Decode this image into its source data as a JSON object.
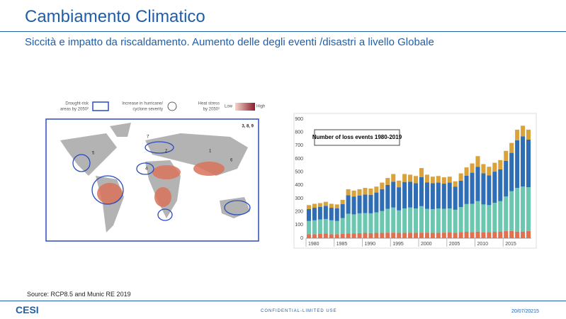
{
  "header": {
    "title": "Cambiamento Climatico",
    "subtitle": "Siccità e impatto da riscaldamento. Aumento delle degli eventi /disastri a livello Globale"
  },
  "map": {
    "legend": {
      "drought": [
        "Drought-risk",
        "areas by 2050²"
      ],
      "cyclone": [
        "Increase in hurricane/",
        "cyclone severity"
      ],
      "heat": [
        "Heat stress",
        "by 2050¹"
      ],
      "low": "Low",
      "high": "High"
    },
    "corner_label": "3, 8, 9",
    "labels": [
      "1",
      "2",
      "4",
      "5",
      "6",
      "7"
    ]
  },
  "chart_data": {
    "type": "bar",
    "stacked": true,
    "title": "Number of loss events 1980-2019",
    "categories": [
      "1980",
      null,
      null,
      null,
      null,
      "1985",
      null,
      null,
      null,
      null,
      "1990",
      null,
      null,
      null,
      null,
      "1995",
      null,
      null,
      null,
      null,
      "2000",
      null,
      null,
      null,
      null,
      "2005",
      null,
      null,
      null,
      null,
      "2010",
      null,
      null,
      null,
      null,
      "2015",
      null,
      null,
      null,
      null
    ],
    "series": [
      {
        "color": "#e0704f",
        "values": [
          30,
          30,
          32,
          35,
          30,
          30,
          32,
          35,
          35,
          38,
          40,
          38,
          40,
          40,
          42,
          42,
          40,
          40,
          42,
          40,
          42,
          42,
          40,
          40,
          42,
          45,
          40,
          45,
          48,
          45,
          50,
          45,
          45,
          48,
          50,
          55,
          55,
          50,
          50,
          55
        ]
      },
      {
        "color": "#6cc7b0",
        "values": [
          100,
          105,
          110,
          110,
          105,
          100,
          120,
          150,
          145,
          150,
          150,
          150,
          155,
          165,
          180,
          190,
          170,
          185,
          190,
          185,
          200,
          180,
          180,
          185,
          180,
          180,
          175,
          190,
          210,
          215,
          230,
          210,
          205,
          220,
          230,
          260,
          300,
          330,
          340,
          330
        ]
      },
      {
        "color": "#2f6db5",
        "values": [
          90,
          95,
          95,
          100,
          95,
          95,
          105,
          140,
          135,
          135,
          140,
          140,
          150,
          165,
          180,
          195,
          175,
          200,
          195,
          190,
          220,
          200,
          195,
          195,
          190,
          195,
          175,
          200,
          215,
          235,
          260,
          235,
          225,
          235,
          240,
          270,
          290,
          360,
          380,
          360
        ]
      },
      {
        "color": "#d9a23b",
        "values": [
          30,
          30,
          28,
          30,
          30,
          30,
          33,
          45,
          45,
          47,
          50,
          47,
          45,
          50,
          53,
          58,
          50,
          60,
          53,
          55,
          68,
          58,
          50,
          50,
          48,
          45,
          40,
          55,
          62,
          70,
          80,
          70,
          65,
          67,
          70,
          75,
          75,
          80,
          80,
          75
        ]
      }
    ],
    "ylim": [
      0,
      900
    ],
    "yticks": [
      0,
      100,
      200,
      300,
      400,
      500,
      600,
      700,
      800,
      900
    ],
    "grid": false
  },
  "footer": {
    "source": "Source: RCP8.5 and Munic RE 2019",
    "logo": "CESI",
    "confidential": "CONFIDENTIAL-LIMITED USE",
    "date": "20/07/20215"
  }
}
